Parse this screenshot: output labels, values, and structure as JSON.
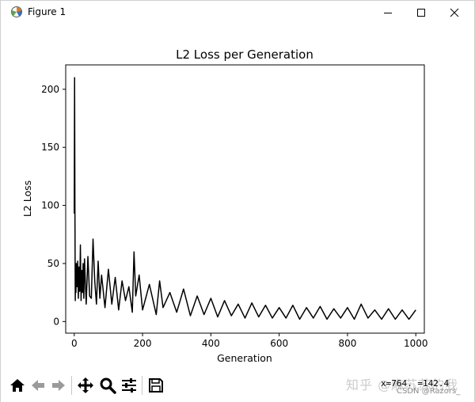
{
  "window": {
    "title": "Figure 1",
    "icon": "matplotlib-figure-icon"
  },
  "toolbar": {
    "buttons": [
      {
        "name": "home-icon"
      },
      {
        "name": "back-arrow-icon"
      },
      {
        "name": "forward-arrow-icon"
      },
      {
        "name": "pan-icon"
      },
      {
        "name": "zoom-icon"
      },
      {
        "name": "configure-subplots-icon"
      },
      {
        "name": "save-icon"
      }
    ],
    "coords": "x=764.    =142.4",
    "watermark": "知乎 @麻苏苏的我",
    "credit": "CSDN @Razors_"
  },
  "chart_data": {
    "type": "line",
    "title": "L2 Loss per Generation",
    "xlabel": "Generation",
    "ylabel": "L2 Loss",
    "xlim": [
      -25,
      1025
    ],
    "ylim": [
      -10,
      221
    ],
    "xticks": [
      0,
      200,
      400,
      600,
      800,
      1000
    ],
    "yticks": [
      0,
      50,
      100,
      150,
      200
    ],
    "grid": false,
    "color": "#000000",
    "series": [
      {
        "name": "",
        "x": [
          0,
          1,
          2,
          3,
          4,
          5,
          6,
          8,
          10,
          12,
          14,
          16,
          18,
          20,
          22,
          24,
          26,
          28,
          30,
          35,
          40,
          45,
          50,
          55,
          60,
          65,
          70,
          75,
          80,
          90,
          100,
          110,
          120,
          130,
          140,
          150,
          160,
          170,
          175,
          180,
          190,
          200,
          220,
          240,
          250,
          260,
          280,
          300,
          320,
          340,
          360,
          380,
          400,
          420,
          440,
          460,
          480,
          500,
          520,
          540,
          560,
          580,
          600,
          620,
          640,
          660,
          680,
          700,
          720,
          740,
          760,
          780,
          800,
          820,
          840,
          860,
          880,
          900,
          920,
          940,
          960,
          980,
          1000
        ],
        "y": [
          93,
          210,
          95,
          18,
          42,
          25,
          50,
          30,
          52,
          20,
          47,
          26,
          66,
          18,
          44,
          25,
          50,
          20,
          54,
          15,
          56,
          22,
          20,
          71,
          35,
          15,
          52,
          20,
          40,
          12,
          45,
          15,
          38,
          10,
          35,
          18,
          30,
          8,
          60,
          22,
          40,
          10,
          32,
          6,
          35,
          12,
          25,
          8,
          28,
          5,
          22,
          6,
          20,
          4,
          18,
          5,
          15,
          3,
          16,
          4,
          14,
          3,
          12,
          3,
          14,
          2,
          12,
          3,
          13,
          2,
          11,
          3,
          12,
          2,
          15,
          3,
          10,
          2,
          11,
          2,
          10,
          2,
          10
        ]
      }
    ]
  }
}
